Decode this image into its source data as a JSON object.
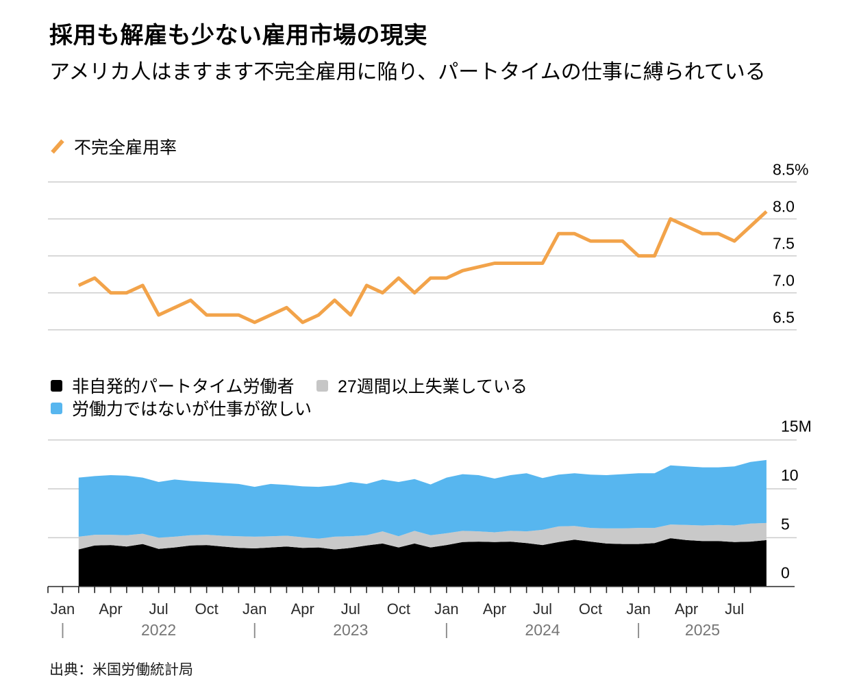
{
  "header": {
    "title": "採用も解雇も少ない雇用市場の現実",
    "subtitle": "アメリカ人はますます不完全雇用に陥り、パートタイムの仕事に縛られている"
  },
  "source": "出典：米国労働統計局",
  "colors": {
    "orange": "#F2A34A",
    "black": "#000000",
    "gray": "#C9C9C9",
    "blue": "#57B6EF",
    "gridline": "#CCCCCC",
    "axis_line": "#333333",
    "tick": "#222222",
    "month_label": "#2a2a2a",
    "year_label": "#767676"
  },
  "chart_data": [
    {
      "type": "line",
      "legend_label": "不完全雇用率",
      "unit": "%",
      "line_color": "#F2A34A",
      "x": [
        "2022-02",
        "2022-03",
        "2022-04",
        "2022-05",
        "2022-06",
        "2022-07",
        "2022-08",
        "2022-09",
        "2022-10",
        "2022-11",
        "2022-12",
        "2023-01",
        "2023-02",
        "2023-03",
        "2023-04",
        "2023-05",
        "2023-06",
        "2023-07",
        "2023-08",
        "2023-09",
        "2023-10",
        "2023-11",
        "2023-12",
        "2024-01",
        "2024-02",
        "2024-03",
        "2024-04",
        "2024-05",
        "2024-06",
        "2024-07",
        "2024-08",
        "2024-09",
        "2024-10",
        "2024-11",
        "2024-12",
        "2025-01",
        "2025-02",
        "2025-03",
        "2025-04",
        "2025-05",
        "2025-06",
        "2025-07",
        "2025-08",
        "2025-09"
      ],
      "values": [
        7.1,
        7.2,
        7.0,
        7.0,
        7.1,
        6.7,
        6.8,
        6.9,
        6.7,
        6.7,
        6.7,
        6.6,
        6.7,
        6.8,
        6.6,
        6.7,
        6.9,
        6.7,
        7.1,
        7.0,
        7.2,
        7.0,
        7.2,
        7.2,
        7.3,
        7.35,
        7.4,
        7.4,
        7.4,
        7.4,
        7.8,
        7.8,
        7.7,
        7.7,
        7.7,
        7.5,
        7.5,
        8.0,
        7.9,
        7.8,
        7.8,
        7.7,
        7.9,
        8.1
      ],
      "yticks": [
        8.5,
        8.0,
        7.5,
        7.0,
        6.5
      ],
      "ytick_labels": [
        "8.5%",
        "8.0",
        "7.5",
        "7.0",
        "6.5"
      ],
      "ylim": [
        6.3,
        8.8
      ],
      "grid": "horizontal",
      "legend_position": "top-left"
    },
    {
      "type": "area",
      "unit": "M",
      "stacked": true,
      "x": [
        "2022-02",
        "2022-03",
        "2022-04",
        "2022-05",
        "2022-06",
        "2022-07",
        "2022-08",
        "2022-09",
        "2022-10",
        "2022-11",
        "2022-12",
        "2023-01",
        "2023-02",
        "2023-03",
        "2023-04",
        "2023-05",
        "2023-06",
        "2023-07",
        "2023-08",
        "2023-09",
        "2023-10",
        "2023-11",
        "2023-12",
        "2024-01",
        "2024-02",
        "2024-03",
        "2024-04",
        "2024-05",
        "2024-06",
        "2024-07",
        "2024-08",
        "2024-09",
        "2024-10",
        "2024-11",
        "2024-12",
        "2025-01",
        "2025-02",
        "2025-03",
        "2025-04",
        "2025-05",
        "2025-06",
        "2025-07",
        "2025-08",
        "2025-09"
      ],
      "series": [
        {
          "name": "非自発的パートタイム労働者",
          "color": "#000000",
          "values": [
            3.8,
            4.2,
            4.25,
            4.1,
            4.35,
            3.85,
            4.0,
            4.2,
            4.25,
            4.1,
            3.95,
            3.9,
            4.0,
            4.1,
            3.95,
            4.0,
            3.8,
            3.95,
            4.2,
            4.4,
            4.0,
            4.4,
            4.0,
            4.25,
            4.55,
            4.6,
            4.55,
            4.6,
            4.45,
            4.25,
            4.55,
            4.8,
            4.6,
            4.4,
            4.35,
            4.35,
            4.45,
            4.95,
            4.75,
            4.65,
            4.65,
            4.55,
            4.6,
            4.75
          ]
        },
        {
          "name": "27週間以上失業している",
          "color": "#C9C9C9",
          "values": [
            1.3,
            1.1,
            1.05,
            1.15,
            1.05,
            1.15,
            1.1,
            1.05,
            1.05,
            1.1,
            1.2,
            1.2,
            1.15,
            1.1,
            1.1,
            0.9,
            1.3,
            1.2,
            1.05,
            1.25,
            1.15,
            1.3,
            1.25,
            1.2,
            1.15,
            1.05,
            1.0,
            1.1,
            1.2,
            1.55,
            1.6,
            1.4,
            1.4,
            1.55,
            1.6,
            1.65,
            1.55,
            1.4,
            1.55,
            1.6,
            1.65,
            1.7,
            1.85,
            1.75
          ]
        },
        {
          "name": "労働力ではないが仕事が欲しい",
          "color": "#57B6EF",
          "values": [
            6.05,
            6.0,
            6.1,
            6.1,
            5.75,
            5.7,
            5.85,
            5.55,
            5.4,
            5.4,
            5.35,
            5.1,
            5.35,
            5.2,
            5.2,
            5.3,
            5.25,
            5.55,
            5.25,
            5.3,
            5.55,
            5.3,
            5.2,
            5.7,
            5.8,
            5.75,
            5.5,
            5.7,
            5.95,
            5.3,
            5.3,
            5.4,
            5.45,
            5.45,
            5.55,
            5.6,
            5.6,
            6.05,
            6.0,
            5.95,
            5.9,
            6.05,
            6.3,
            6.45
          ]
        }
      ],
      "yticks": [
        15,
        10,
        5,
        0
      ],
      "ytick_labels": [
        "15M",
        "10",
        "5",
        "0"
      ],
      "ylim": [
        0,
        15
      ],
      "grid": "horizontal",
      "legend_position": "top-left",
      "x_axis": {
        "quarter_labels": [
          "Jan",
          "Apr",
          "Jul",
          "Oct"
        ],
        "years": [
          "2022",
          "2023",
          "2024",
          "2025"
        ],
        "year_divider": "|"
      }
    }
  ]
}
